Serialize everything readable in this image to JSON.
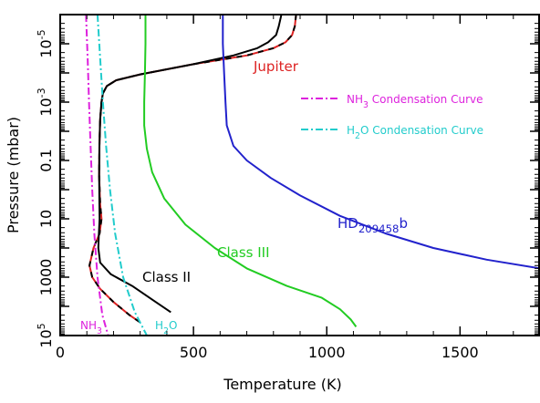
{
  "chart_data": {
    "type": "line",
    "xlabel": "Temperature (K)",
    "ylabel": "Pressure (mbar)",
    "xlim": [
      0,
      1800
    ],
    "ylim_log10": [
      -6,
      5
    ],
    "y_inverted": true,
    "y_scale": "log",
    "grid": false,
    "x_ticks": [
      {
        "value": 0,
        "label": "0"
      },
      {
        "value": 500,
        "label": "500"
      },
      {
        "value": 1000,
        "label": "1000"
      },
      {
        "value": 1500,
        "label": "1500"
      }
    ],
    "y_ticks": [
      {
        "value": -5,
        "label": "10",
        "exp": "-5"
      },
      {
        "value": -3,
        "label": "10",
        "exp": "-3"
      },
      {
        "value": -1,
        "label": "0.1",
        "exp": ""
      },
      {
        "value": 1,
        "label": "10",
        "exp": ""
      },
      {
        "value": 3,
        "label": "1000",
        "exp": ""
      },
      {
        "value": 5,
        "label": "10",
        "exp": "5"
      }
    ],
    "series": [
      {
        "name": "Jupiter",
        "color": "#dd2222",
        "points": [
          [
            885,
            -6
          ],
          [
            880,
            -5.6
          ],
          [
            870,
            -5.3
          ],
          [
            845,
            -5.05
          ],
          [
            800,
            -4.85
          ],
          [
            700,
            -4.6
          ],
          [
            500,
            -4.3
          ],
          [
            300,
            -3.95
          ],
          [
            210,
            -3.75
          ],
          [
            175,
            -3.55
          ],
          [
            160,
            -3.3
          ],
          [
            155,
            -3
          ],
          [
            150,
            -2.4
          ],
          [
            147,
            -1.5
          ],
          [
            146,
            -0.5
          ],
          [
            150,
            0.5
          ],
          [
            155,
            1
          ],
          [
            148,
            1.5
          ],
          [
            125,
            2
          ],
          [
            110,
            2.6
          ],
          [
            120,
            3
          ],
          [
            150,
            3.4
          ],
          [
            200,
            3.85
          ],
          [
            260,
            4.3
          ],
          [
            300,
            4.55
          ]
        ]
      },
      {
        "name": "Class II",
        "color": "#000000",
        "points": [
          [
            830,
            -6
          ],
          [
            820,
            -5.6
          ],
          [
            810,
            -5.3
          ],
          [
            780,
            -5.05
          ],
          [
            740,
            -4.85
          ],
          [
            650,
            -4.6
          ],
          [
            500,
            -4.3
          ],
          [
            300,
            -3.95
          ],
          [
            210,
            -3.75
          ],
          [
            175,
            -3.55
          ],
          [
            160,
            -3.3
          ],
          [
            155,
            -3
          ],
          [
            150,
            -2.4
          ],
          [
            147,
            -1.5
          ],
          [
            146,
            -0.5
          ],
          [
            147,
            0.5
          ],
          [
            148,
            1
          ],
          [
            145,
            1.5
          ],
          [
            143,
            2
          ],
          [
            150,
            2.5
          ],
          [
            190,
            2.9
          ],
          [
            270,
            3.3
          ],
          [
            350,
            3.8
          ],
          [
            415,
            4.2
          ]
        ]
      },
      {
        "name": "Class III",
        "color": "#22cc22",
        "points": [
          [
            320,
            -6
          ],
          [
            320,
            -5
          ],
          [
            318,
            -4
          ],
          [
            315,
            -3
          ],
          [
            315,
            -2.2
          ],
          [
            325,
            -1.4
          ],
          [
            345,
            -0.6
          ],
          [
            390,
            0.3
          ],
          [
            470,
            1.2
          ],
          [
            580,
            2
          ],
          [
            700,
            2.7
          ],
          [
            850,
            3.3
          ],
          [
            980,
            3.7
          ],
          [
            1050,
            4.1
          ],
          [
            1090,
            4.45
          ],
          [
            1110,
            4.7
          ]
        ]
      },
      {
        "name": "HD209458b",
        "color": "#2222cc",
        "points": [
          [
            610,
            -6
          ],
          [
            610,
            -5
          ],
          [
            615,
            -4
          ],
          [
            620,
            -3
          ],
          [
            625,
            -2.2
          ],
          [
            650,
            -1.5
          ],
          [
            700,
            -1
          ],
          [
            790,
            -0.4
          ],
          [
            900,
            0.2
          ],
          [
            1050,
            0.9
          ],
          [
            1220,
            1.5
          ],
          [
            1400,
            2
          ],
          [
            1600,
            2.4
          ],
          [
            1800,
            2.7
          ]
        ]
      },
      {
        "name": "NH3 Condensation Curve",
        "color": "#dd22dd",
        "dash": "dashdot",
        "points": [
          [
            97,
            -6
          ],
          [
            103,
            -4.5
          ],
          [
            108,
            -3
          ],
          [
            114,
            -1.5
          ],
          [
            120,
            0
          ],
          [
            128,
            1.5
          ],
          [
            140,
            3
          ],
          [
            158,
            4.3
          ],
          [
            180,
            5
          ]
        ]
      },
      {
        "name": "H2O Condensation Curve",
        "color": "#22cccc",
        "dash": "dashdot",
        "points": [
          [
            140,
            -6
          ],
          [
            150,
            -4.5
          ],
          [
            160,
            -3
          ],
          [
            172,
            -1.5
          ],
          [
            187,
            0
          ],
          [
            206,
            1.5
          ],
          [
            236,
            3
          ],
          [
            280,
            4.2
          ],
          [
            325,
            5
          ]
        ]
      }
    ],
    "line_labels": [
      {
        "text": "Jupiter",
        "color": "#dd2222"
      },
      {
        "text": "Class II",
        "color": "#000000"
      },
      {
        "text": "Class III",
        "color": "#22cc22"
      },
      {
        "text": "HD209458b",
        "color": "#2222cc"
      },
      {
        "text": "NH3",
        "color": "#dd22dd"
      },
      {
        "text": "H2O",
        "color": "#22cccc"
      }
    ],
    "legend": [
      {
        "text": "NH3 Condensation Curve",
        "color": "#dd22dd",
        "dash": "dashdot"
      },
      {
        "text": "H2O Condensation Curve",
        "color": "#22cccc",
        "dash": "dashdot"
      }
    ]
  }
}
